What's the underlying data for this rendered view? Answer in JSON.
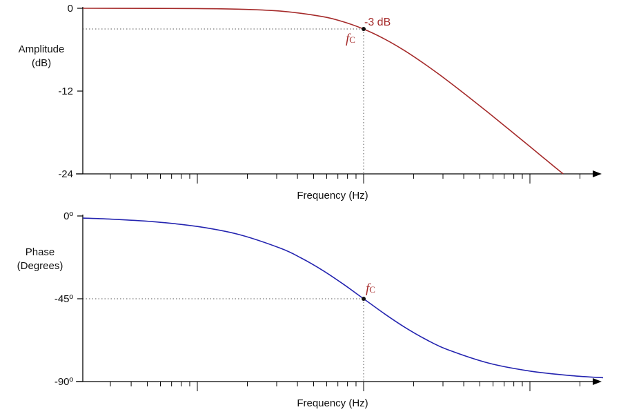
{
  "chart_data": [
    {
      "type": "line",
      "title": "",
      "xlabel": "Frequency (Hz)",
      "ylabel": [
        "Amplitude",
        "(dB)"
      ],
      "x_scale": "log10(f/fc)",
      "xlim": [
        -1.69,
        1.44
      ],
      "ylim": [
        -24,
        0
      ],
      "yticks": [
        0,
        -12,
        -24
      ],
      "ytick_labels": [
        "0",
        "-12",
        "-24"
      ],
      "grid": false,
      "series": [
        {
          "name": "Amplitude",
          "color": "#a52a2a",
          "x": [
            -1.7,
            -1.5,
            -1,
            -0.75,
            -0.5,
            -0.25,
            -0.125,
            0,
            0.125,
            0.25,
            0.375,
            0.5,
            0.625,
            0.75,
            0.875,
            1,
            1.1,
            1.2
          ],
          "y": [
            0,
            -0.004,
            -0.043,
            -0.135,
            -0.41,
            -1.19,
            -1.94,
            -3.01,
            -4.44,
            -6.19,
            -8.21,
            -10.41,
            -12.74,
            -15.13,
            -17.58,
            -20.04,
            -22.03,
            -24
          ]
        }
      ],
      "marker": {
        "x": 0,
        "y": -3,
        "label": "-3 dB",
        "f_label": "f",
        "f_sub": "C"
      }
    },
    {
      "type": "line",
      "title": "",
      "xlabel": "Frequency (Hz)",
      "ylabel": [
        "Phase",
        "(Degrees)"
      ],
      "x_scale": "log10(f/fc)",
      "xlim": [
        -1.69,
        1.44
      ],
      "ylim": [
        -90,
        0
      ],
      "yticks": [
        0,
        -45,
        -90
      ],
      "ytick_labels": [
        "0º",
        "-45º",
        "-90º"
      ],
      "grid": false,
      "series": [
        {
          "name": "Phase",
          "color": "#2424b0",
          "x": [
            -1.7,
            -1.5,
            -1.25,
            -1,
            -0.75,
            -0.5,
            -0.375,
            -0.25,
            -0.125,
            0,
            0.125,
            0.25,
            0.375,
            0.5,
            0.75,
            1,
            1.25,
            1.44
          ],
          "y": [
            -1.14,
            -1.81,
            -3.22,
            -5.71,
            -10.08,
            -17.55,
            -22.87,
            -29.36,
            -36.87,
            -45,
            -53.13,
            -60.64,
            -67.13,
            -72.45,
            -79.92,
            -84.29,
            -86.78,
            -87.92
          ]
        }
      ],
      "marker": {
        "x": 0,
        "y": -45,
        "f_label": "f",
        "f_sub": "C"
      }
    }
  ]
}
